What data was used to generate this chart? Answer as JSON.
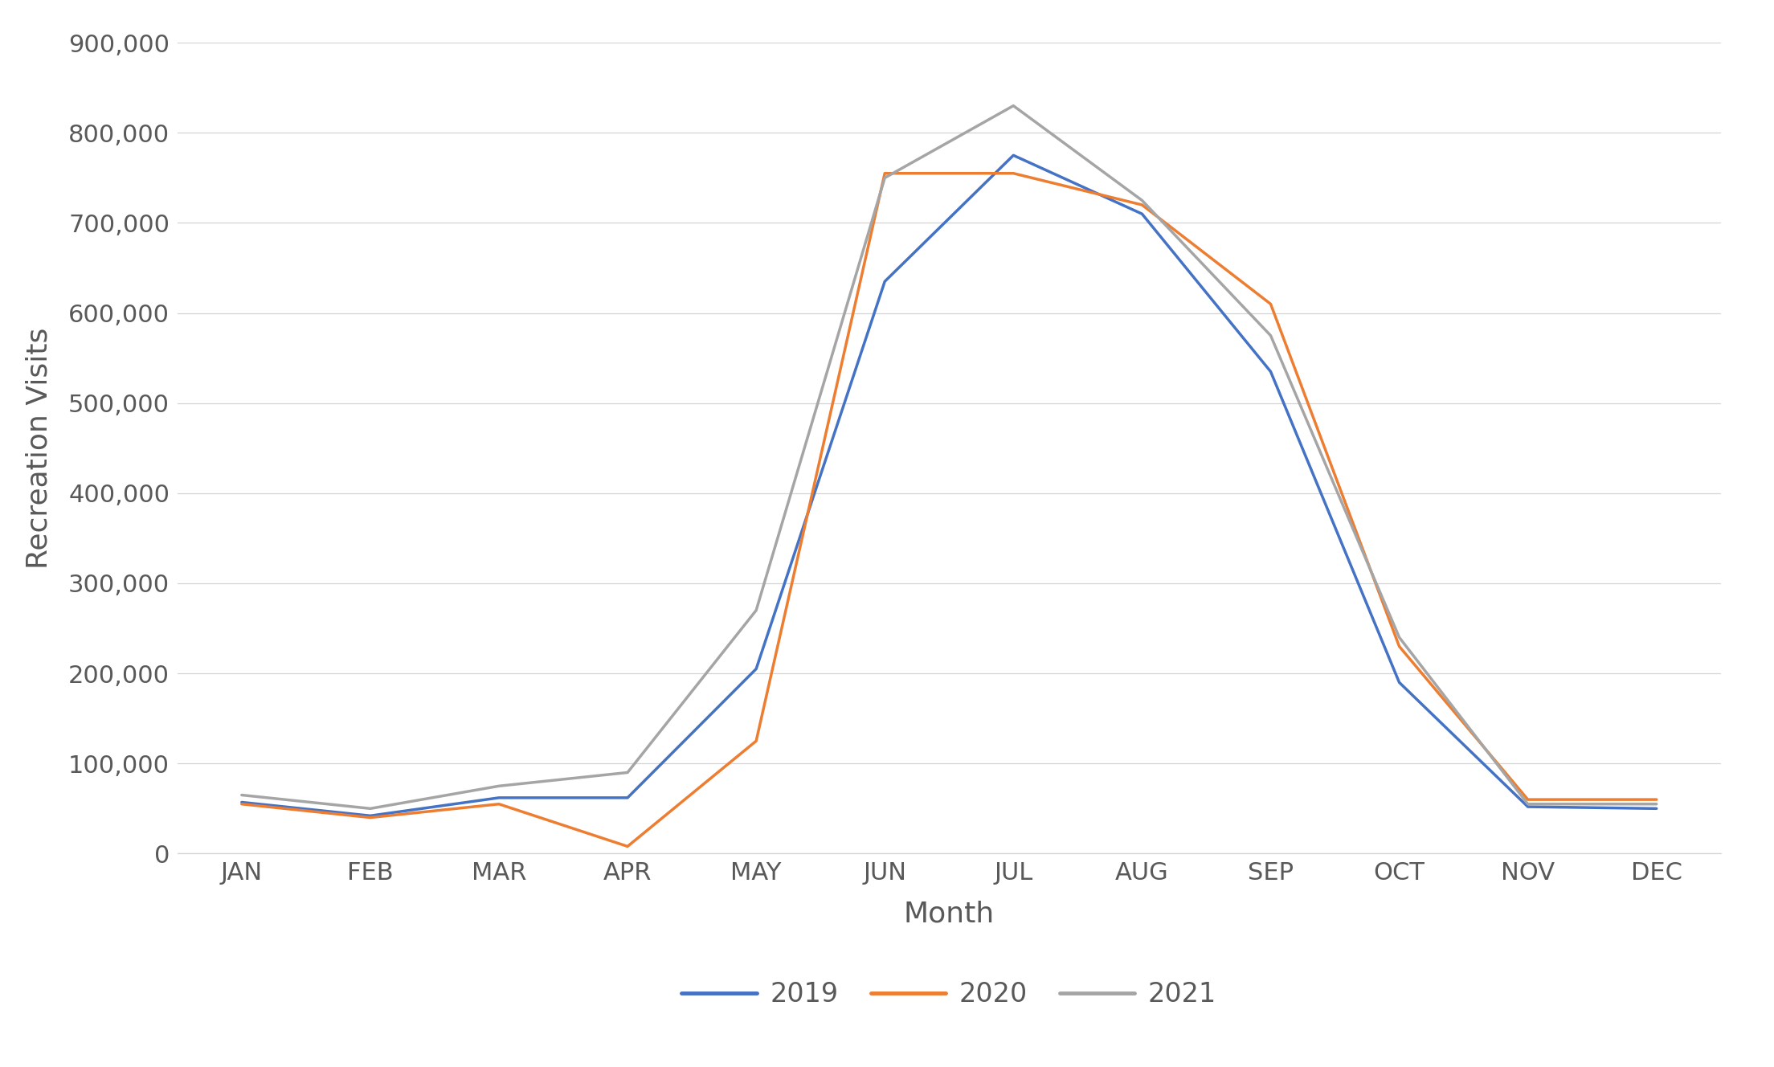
{
  "months": [
    "JAN",
    "FEB",
    "MAR",
    "APR",
    "MAY",
    "JUN",
    "JUL",
    "AUG",
    "SEP",
    "OCT",
    "NOV",
    "DEC"
  ],
  "series": {
    "2019": [
      57000,
      42000,
      62000,
      62000,
      205000,
      635000,
      775000,
      710000,
      535000,
      190000,
      52000,
      50000
    ],
    "2020": [
      55000,
      40000,
      55000,
      8000,
      125000,
      755000,
      755000,
      720000,
      610000,
      230000,
      60000,
      60000
    ],
    "2021": [
      65000,
      50000,
      75000,
      90000,
      270000,
      750000,
      830000,
      725000,
      575000,
      240000,
      55000,
      55000
    ]
  },
  "colors": {
    "2019": "#4472C4",
    "2020": "#ED7D31",
    "2021": "#A5A5A5"
  },
  "linewidth": 2.5,
  "xlabel": "Month",
  "ylabel": "Recreation Visits",
  "ylim": [
    0,
    900000
  ],
  "ytick_step": 100000,
  "legend_labels": [
    "2019",
    "2020",
    "2021"
  ],
  "background_color": "#FFFFFF",
  "grid_color": "#D3D3D3",
  "tick_label_color": "#595959",
  "axis_label_color": "#595959",
  "legend_text_color": "#595959"
}
